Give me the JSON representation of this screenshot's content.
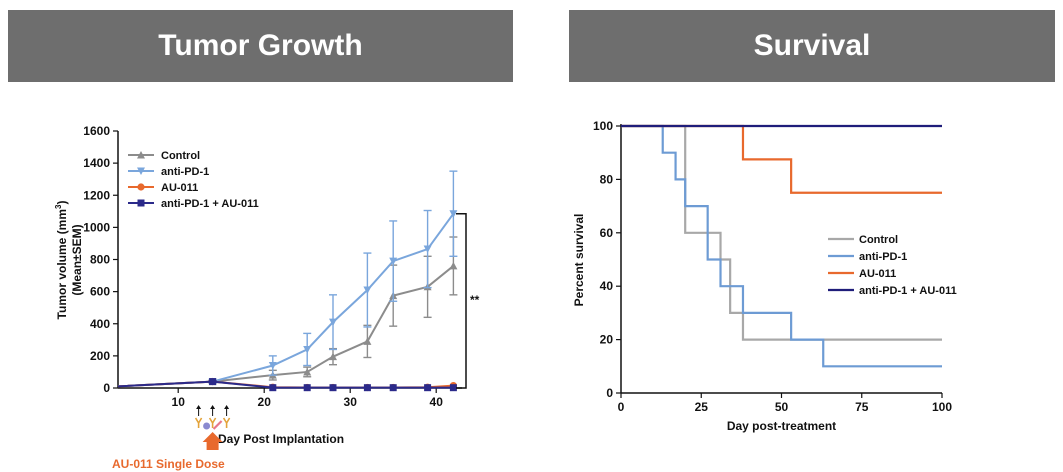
{
  "panels": {
    "left_title": "Tumor Growth",
    "right_title": "Survival"
  },
  "chart_data": [
    {
      "type": "line",
      "title": "Tumor Growth",
      "xlabel": "Day Post Implantation",
      "ylabel_line1": "Tumor volume (mm",
      "ylabel_sup": "3",
      "ylabel_line1_end": ")",
      "ylabel_line2": "(Mean±SEM)",
      "xlim": [
        3,
        43
      ],
      "ylim": [
        0,
        1600
      ],
      "xticks": [
        10,
        20,
        30,
        40
      ],
      "yticks": [
        0,
        200,
        400,
        600,
        800,
        1000,
        1200,
        1400,
        1600
      ],
      "legend_position": "top-left",
      "significance_label": "**",
      "annotation": "AU-011 Single Dose",
      "annotation_color": "#e8692d",
      "series": [
        {
          "name": "Control",
          "color": "#8c8c8c",
          "marker": "triangle-up",
          "x": [
            3,
            14,
            21,
            25,
            28,
            32,
            35,
            39,
            42
          ],
          "y": [
            10,
            40,
            80,
            100,
            195,
            290,
            575,
            630,
            760
          ],
          "err": [
            0,
            10,
            30,
            30,
            50,
            100,
            190,
            190,
            180
          ]
        },
        {
          "name": "anti-PD-1",
          "color": "#7aa6dc",
          "marker": "triangle-down",
          "x": [
            3,
            14,
            21,
            25,
            28,
            32,
            35,
            39,
            42
          ],
          "y": [
            10,
            40,
            140,
            240,
            410,
            610,
            790,
            865,
            1085
          ],
          "err": [
            0,
            10,
            60,
            100,
            170,
            230,
            250,
            240,
            265
          ]
        },
        {
          "name": "AU-011",
          "color": "#e8692d",
          "marker": "circle",
          "x": [
            3,
            14,
            21,
            25,
            28,
            32,
            35,
            39,
            42
          ],
          "y": [
            10,
            40,
            5,
            3,
            3,
            3,
            3,
            5,
            15
          ],
          "err": [
            0,
            5,
            0,
            0,
            0,
            0,
            0,
            0,
            0
          ]
        },
        {
          "name": "anti-PD-1 + AU-011",
          "color": "#2b2a8a",
          "marker": "square",
          "x": [
            3,
            14,
            21,
            25,
            28,
            32,
            35,
            39,
            42
          ],
          "y": [
            10,
            40,
            2,
            2,
            2,
            2,
            2,
            2,
            2
          ],
          "err": [
            0,
            5,
            0,
            0,
            0,
            0,
            0,
            0,
            0
          ]
        }
      ]
    },
    {
      "type": "line",
      "step": true,
      "title": "Survival",
      "xlabel": "Day post-treatment",
      "ylabel": "Percent survival",
      "xlim": [
        0,
        100
      ],
      "ylim": [
        0,
        100
      ],
      "xticks": [
        0,
        25,
        50,
        75,
        100
      ],
      "yticks": [
        0,
        20,
        40,
        60,
        80,
        100
      ],
      "legend_position": "center-right",
      "series": [
        {
          "name": "Control",
          "color": "#a8a8a8",
          "x": [
            0,
            20,
            20,
            31,
            31,
            34,
            34,
            38,
            38,
            100
          ],
          "y": [
            100,
            100,
            60,
            60,
            50,
            50,
            30,
            30,
            20,
            20
          ]
        },
        {
          "name": "anti-PD-1",
          "color": "#6d9bd4",
          "x": [
            0,
            13,
            13,
            17,
            17,
            20,
            20,
            27,
            27,
            31,
            31,
            38,
            38,
            53,
            53,
            63,
            63,
            100
          ],
          "y": [
            100,
            100,
            90,
            90,
            80,
            80,
            70,
            70,
            50,
            50,
            40,
            40,
            30,
            30,
            20,
            20,
            10,
            10
          ]
        },
        {
          "name": "AU-011",
          "color": "#e8692d",
          "x": [
            0,
            38,
            38,
            53,
            53,
            100
          ],
          "y": [
            100,
            100,
            87.5,
            87.5,
            75,
            75
          ]
        },
        {
          "name": "anti-PD-1 + AU-011",
          "color": "#1f1d7a",
          "x": [
            0,
            100
          ],
          "y": [
            100,
            100
          ]
        }
      ]
    }
  ]
}
